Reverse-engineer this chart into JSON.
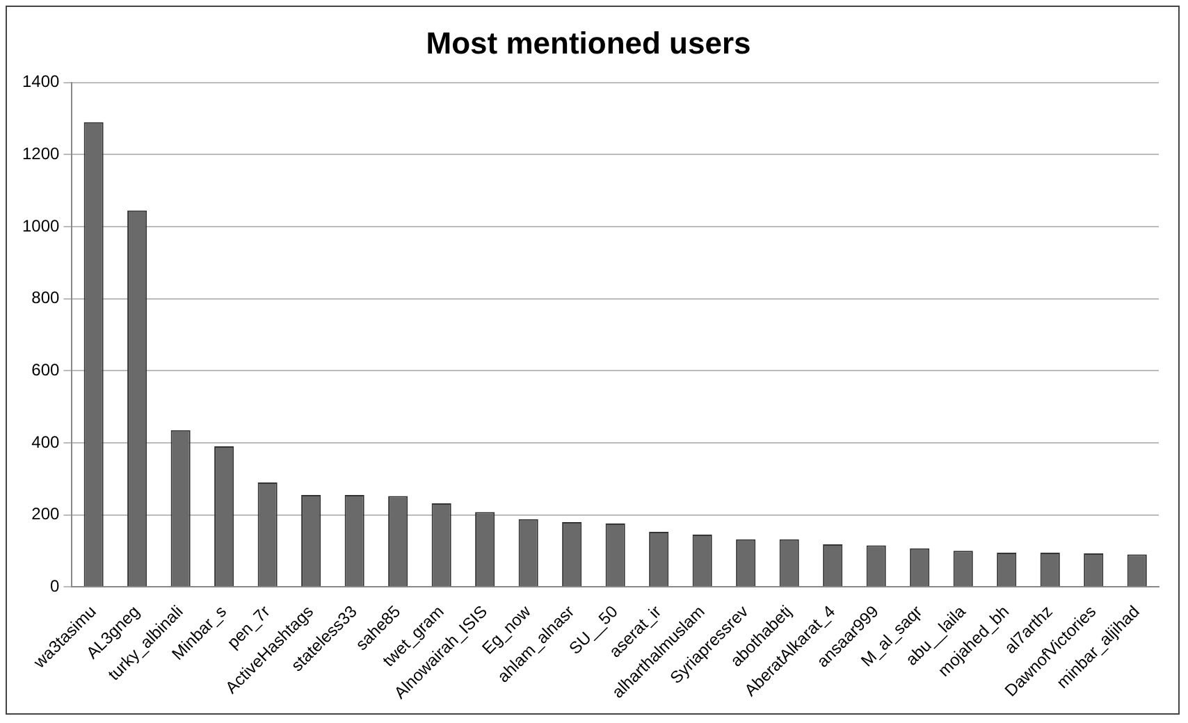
{
  "chart_data": {
    "type": "bar",
    "title": "Most mentioned users",
    "categories": [
      "wa3tasimu",
      "AL3gneg",
      "turky_albinali",
      "Minbar_s",
      "pen_7r",
      "ActiveHashtags",
      "stateless33",
      "sahe85",
      "twet_gram",
      "Alnowairah_ISIS",
      "Eg_now",
      "ahlam_alnasr",
      "SU__50",
      "aserat_ir",
      "alharthalmuslam",
      "Syriapressrev",
      "abothabetj",
      "AberatAlkarat_4",
      "ansaar999",
      "M_al_saqr",
      "abu__laila",
      "mojahed_bh",
      "al7arthz",
      "DawnofVictories",
      "minbar_aljihad"
    ],
    "values": [
      1290,
      1045,
      435,
      390,
      290,
      255,
      255,
      252,
      232,
      208,
      188,
      180,
      176,
      153,
      145,
      132,
      132,
      118,
      115,
      107,
      100,
      95,
      95,
      93,
      90
    ],
    "color": "#6a6a6a",
    "ylim": [
      0,
      1400
    ],
    "yticks": [
      0,
      200,
      400,
      600,
      800,
      1000,
      1200,
      1400
    ],
    "grid": "y"
  }
}
